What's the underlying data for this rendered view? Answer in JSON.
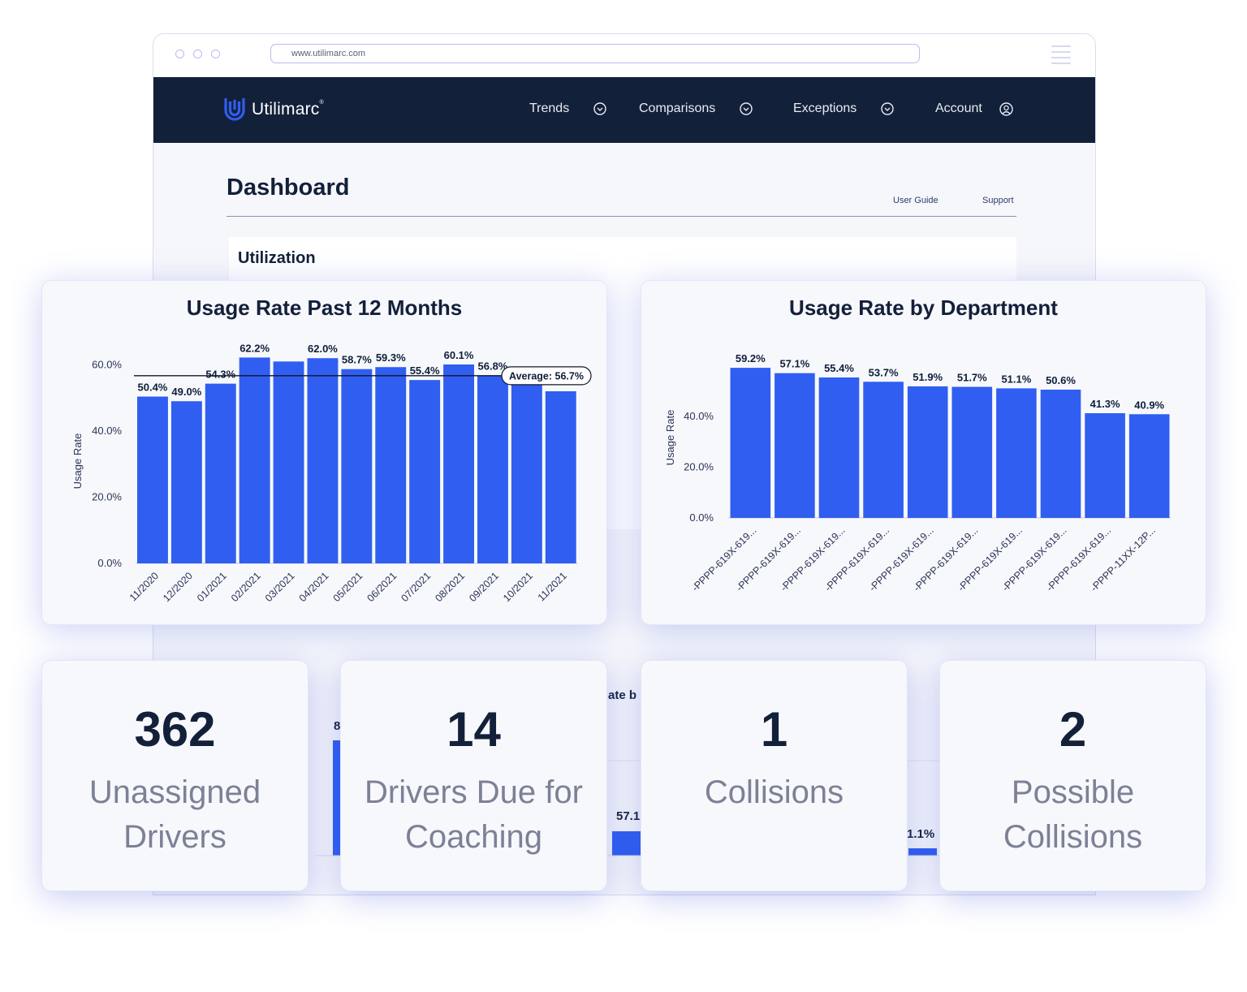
{
  "browser": {
    "url": "www.utilimarc.com"
  },
  "nav": {
    "brand": "Utilimarc",
    "brand_mark": "®",
    "items": [
      {
        "label": "Trends",
        "icon": "chevron-down-circle-icon"
      },
      {
        "label": "Comparisons",
        "icon": "chevron-down-circle-icon"
      },
      {
        "label": "Exceptions",
        "icon": "chevron-down-circle-icon"
      },
      {
        "label": "Account",
        "icon": "user-circle-icon"
      }
    ]
  },
  "page": {
    "title": "Dashboard",
    "links": [
      "User Guide",
      "Support"
    ],
    "section_title": "Utilization"
  },
  "colors": {
    "bar": "#2f5ef0",
    "nav_bg": "#13203a",
    "accent_shadow": "#465adc"
  },
  "chart_data": [
    {
      "type": "bar",
      "title": "Usage Rate Past 12 Months",
      "ylabel": "Usage Rate",
      "ylim": [
        0,
        65
      ],
      "yticks": [
        "0.0%",
        "20.0%",
        "40.0%",
        "60.0%"
      ],
      "categories": [
        "11/2020",
        "12/2020",
        "01/2021",
        "02/2021",
        "03/2021",
        "04/2021",
        "05/2021",
        "06/2021",
        "07/2021",
        "08/2021",
        "09/2021",
        "10/2021",
        "11/2021"
      ],
      "values": [
        50.4,
        49.0,
        54.3,
        62.2,
        61.0,
        62.0,
        58.7,
        59.3,
        55.4,
        60.1,
        56.8,
        55.0,
        52.0
      ],
      "labels": [
        "50.4%",
        "49.0%",
        "54.3%",
        "62.2%",
        "",
        "62.0%",
        "58.7%",
        "59.3%",
        "55.4%",
        "60.1%",
        "56.8%",
        "",
        ""
      ],
      "average": {
        "value": 56.7,
        "label": "Average: 56.7%"
      }
    },
    {
      "type": "bar",
      "title": "Usage Rate by Department",
      "ylabel": "Usage Rate",
      "ylim": [
        0,
        65
      ],
      "yticks": [
        "0.0%",
        "20.0%",
        "40.0%"
      ],
      "categories": [
        "-PPPP-619X-619...",
        "-PPPP-619X-619...",
        "-PPPP-619X-619...",
        "-PPPP-619X-619...",
        "-PPPP-619X-619...",
        "-PPPP-619X-619...",
        "-PPPP-619X-619...",
        "-PPPP-619X-619...",
        "-PPPP-619X-619...",
        "-PPPP-11XX-12P..."
      ],
      "values": [
        59.2,
        57.1,
        55.4,
        53.7,
        51.9,
        51.7,
        51.1,
        50.6,
        41.3,
        40.9
      ],
      "labels": [
        "59.2%",
        "57.1%",
        "55.4%",
        "53.7%",
        "51.9%",
        "51.7%",
        "51.1%",
        "50.6%",
        "41.3%",
        "40.9%"
      ]
    }
  ],
  "stats": [
    {
      "value": "362",
      "label": "Unassigned Drivers"
    },
    {
      "value": "14",
      "label": "Drivers Due for Coaching"
    },
    {
      "value": "1",
      "label": "Collisions"
    },
    {
      "value": "2",
      "label": "Possible Collisions"
    }
  ],
  "background_fragments": {
    "text_a": "ate b",
    "text_b": "57.1",
    "text_c": "1.1%",
    "text_d": "8"
  }
}
